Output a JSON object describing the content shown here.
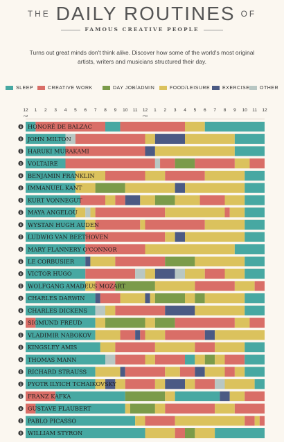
{
  "header": {
    "title_pre": "THE",
    "title_main": "DAILY ROUTINES",
    "title_post": "OF",
    "subtitle": "FAMOUS CREATIVE PEOPLE",
    "intro": "Turns out great minds don't think alike. Discover how some of the world's most original artists, writers and musicians structured their day."
  },
  "colors": {
    "sleep": "#47a8a2",
    "creative": "#d96e67",
    "dayjob": "#7b9b4a",
    "food": "#dbc25d",
    "exercise": "#4b5a84",
    "other": "#b8c7c3",
    "row_bg": "#e9dfca"
  },
  "info_icon": "info-icon",
  "chart_data": {
    "type": "bar",
    "orientation": "horizontal-stacked-timeline",
    "legend": [
      {
        "key": "sleep",
        "label": "SLEEP"
      },
      {
        "key": "creative",
        "label": "CREATIVE WORK"
      },
      {
        "key": "dayjob",
        "label": "DAY JOB/ADMIN"
      },
      {
        "key": "food",
        "label": "FOOD/LEISURE"
      },
      {
        "key": "exercise",
        "label": "EXERCISE"
      },
      {
        "key": "other",
        "label": "OTHER"
      }
    ],
    "x_ticks": [
      "12",
      "1",
      "2",
      "3",
      "4",
      "5",
      "6",
      "7",
      "8",
      "9",
      "10",
      "11",
      "12",
      "1",
      "2",
      "3",
      "4",
      "5",
      "6",
      "7",
      "8",
      "9",
      "10",
      "11",
      "12"
    ],
    "x_sublabels": [
      {
        "at": 0,
        "text": "AM"
      },
      {
        "at": 12,
        "text": "PM"
      }
    ],
    "xlim": [
      0,
      24
    ],
    "people": [
      {
        "name": "HONORÉ DE BALZAC",
        "segments": [
          [
            "sleep",
            1
          ],
          [
            "creative",
            8
          ],
          [
            "sleep",
            9.5
          ],
          [
            "creative",
            16
          ],
          [
            "food",
            18
          ],
          [
            "sleep",
            24
          ]
        ]
      },
      {
        "name": "JOHN MILTON",
        "segments": [
          [
            "sleep",
            4
          ],
          [
            "other",
            5
          ],
          [
            "creative",
            12
          ],
          [
            "food",
            13
          ],
          [
            "exercise",
            16
          ],
          [
            "food",
            21
          ],
          [
            "sleep",
            24
          ]
        ]
      },
      {
        "name": "HARUKI MURAKAMI",
        "segments": [
          [
            "sleep",
            4
          ],
          [
            "creative",
            12
          ],
          [
            "exercise",
            13
          ],
          [
            "food",
            21
          ],
          [
            "sleep",
            24
          ]
        ]
      },
      {
        "name": "VOLTAIRE",
        "segments": [
          [
            "sleep",
            4
          ],
          [
            "creative",
            13
          ],
          [
            "other",
            13.5
          ],
          [
            "creative",
            15
          ],
          [
            "dayjob",
            17
          ],
          [
            "creative",
            21
          ],
          [
            "food",
            22.5
          ],
          [
            "creative",
            24
          ]
        ]
      },
      {
        "name": "BENJAMIN FRANKLIN",
        "segments": [
          [
            "sleep",
            5
          ],
          [
            "food",
            8
          ],
          [
            "creative",
            12
          ],
          [
            "food",
            14
          ],
          [
            "creative",
            18
          ],
          [
            "food",
            22
          ],
          [
            "sleep",
            24
          ]
        ]
      },
      {
        "name": "IMMANUEL KANT",
        "segments": [
          [
            "sleep",
            5
          ],
          [
            "food",
            7
          ],
          [
            "dayjob",
            10
          ],
          [
            "food",
            15
          ],
          [
            "exercise",
            16
          ],
          [
            "food",
            22
          ],
          [
            "sleep",
            24
          ]
        ]
      },
      {
        "name": "KURT VONNEGUT",
        "segments": [
          [
            "sleep",
            5.5
          ],
          [
            "creative",
            8
          ],
          [
            "food",
            9
          ],
          [
            "creative",
            10
          ],
          [
            "exercise",
            11.5
          ],
          [
            "food",
            13
          ],
          [
            "dayjob",
            15
          ],
          [
            "food",
            17.5
          ],
          [
            "creative",
            20
          ],
          [
            "food",
            22
          ],
          [
            "sleep",
            24
          ]
        ]
      },
      {
        "name": "MAYA ANGELOU",
        "segments": [
          [
            "sleep",
            5
          ],
          [
            "food",
            6
          ],
          [
            "other",
            6.5
          ],
          [
            "food",
            7
          ],
          [
            "creative",
            14
          ],
          [
            "food",
            20
          ],
          [
            "creative",
            20.5
          ],
          [
            "food",
            22
          ],
          [
            "sleep",
            24
          ]
        ]
      },
      {
        "name": "WYSTAN HUGH AUDEN",
        "segments": [
          [
            "sleep",
            6
          ],
          [
            "food",
            7
          ],
          [
            "creative",
            11.5
          ],
          [
            "food",
            12
          ],
          [
            "creative",
            18
          ],
          [
            "food",
            22
          ],
          [
            "sleep",
            24
          ]
        ]
      },
      {
        "name": "LUDWIG VAN BEETHOVEN",
        "segments": [
          [
            "sleep",
            6
          ],
          [
            "creative",
            14
          ],
          [
            "food",
            15
          ],
          [
            "exercise",
            16
          ],
          [
            "food",
            22
          ],
          [
            "sleep",
            24
          ]
        ]
      },
      {
        "name": "MARY FLANNERY O'CONNOR",
        "segments": [
          [
            "sleep",
            6
          ],
          [
            "creative",
            12
          ],
          [
            "food",
            21
          ],
          [
            "sleep",
            24
          ]
        ]
      },
      {
        "name": "LE CORBUSIER",
        "segments": [
          [
            "sleep",
            6
          ],
          [
            "exercise",
            6.5
          ],
          [
            "food",
            9
          ],
          [
            "creative",
            14
          ],
          [
            "dayjob",
            17
          ],
          [
            "food",
            22
          ],
          [
            "sleep",
            24
          ]
        ]
      },
      {
        "name": "VICTOR HUGO",
        "segments": [
          [
            "sleep",
            6
          ],
          [
            "creative",
            11
          ],
          [
            "other",
            12
          ],
          [
            "food",
            13
          ],
          [
            "exercise",
            15
          ],
          [
            "other",
            16
          ],
          [
            "food",
            18
          ],
          [
            "creative",
            20
          ],
          [
            "food",
            22
          ],
          [
            "sleep",
            24
          ]
        ]
      },
      {
        "name": "WOLFGANG AMADEUS MOZART",
        "segments": [
          [
            "sleep",
            6
          ],
          [
            "food",
            7
          ],
          [
            "creative",
            9
          ],
          [
            "dayjob",
            13
          ],
          [
            "food",
            17
          ],
          [
            "creative",
            21
          ],
          [
            "food",
            23
          ],
          [
            "creative",
            24
          ]
        ]
      },
      {
        "name": "CHARLES DARWIN",
        "segments": [
          [
            "sleep",
            7
          ],
          [
            "exercise",
            7.5
          ],
          [
            "creative",
            9.5
          ],
          [
            "food",
            12
          ],
          [
            "exercise",
            12.5
          ],
          [
            "food",
            13
          ],
          [
            "dayjob",
            16
          ],
          [
            "food",
            17
          ],
          [
            "dayjob",
            18
          ],
          [
            "food",
            22
          ],
          [
            "sleep",
            24
          ]
        ]
      },
      {
        "name": "CHARLES DICKENS",
        "segments": [
          [
            "sleep",
            7
          ],
          [
            "other",
            8
          ],
          [
            "food",
            9
          ],
          [
            "creative",
            14
          ],
          [
            "exercise",
            17
          ],
          [
            "food",
            22
          ],
          [
            "sleep",
            24
          ]
        ]
      },
      {
        "name": "SIGMUND FREUD",
        "segments": [
          [
            "creative",
            1
          ],
          [
            "sleep",
            7
          ],
          [
            "food",
            8
          ],
          [
            "dayjob",
            12
          ],
          [
            "food",
            13
          ],
          [
            "dayjob",
            15
          ],
          [
            "creative",
            21
          ],
          [
            "food",
            22.5
          ],
          [
            "creative",
            24
          ]
        ]
      },
      {
        "name": "VLADIMIR NABOKOV",
        "segments": [
          [
            "sleep",
            7
          ],
          [
            "food",
            9.5
          ],
          [
            "creative",
            11
          ],
          [
            "exercise",
            11.5
          ],
          [
            "creative",
            12
          ],
          [
            "food",
            14
          ],
          [
            "creative",
            18
          ],
          [
            "exercise",
            19
          ],
          [
            "food",
            24
          ]
        ]
      },
      {
        "name": "KINGSLEY AMIS",
        "segments": [
          [
            "sleep",
            7.5
          ],
          [
            "food",
            9
          ],
          [
            "creative",
            13
          ],
          [
            "food",
            17
          ],
          [
            "creative",
            19
          ],
          [
            "food",
            22
          ],
          [
            "sleep",
            24
          ]
        ]
      },
      {
        "name": "THOMAS MANN",
        "segments": [
          [
            "sleep",
            8
          ],
          [
            "other",
            9
          ],
          [
            "creative",
            12
          ],
          [
            "food",
            13
          ],
          [
            "creative",
            16
          ],
          [
            "sleep",
            17
          ],
          [
            "food",
            18
          ],
          [
            "dayjob",
            19
          ],
          [
            "food",
            20
          ],
          [
            "creative",
            22
          ],
          [
            "sleep",
            24
          ]
        ]
      },
      {
        "name": "RICHARD STRAUSS",
        "segments": [
          [
            "sleep",
            7
          ],
          [
            "food",
            9.5
          ],
          [
            "exercise",
            10
          ],
          [
            "creative",
            14
          ],
          [
            "food",
            15.5
          ],
          [
            "creative",
            17
          ],
          [
            "exercise",
            18
          ],
          [
            "food",
            20
          ],
          [
            "creative",
            21
          ],
          [
            "food",
            22
          ],
          [
            "sleep",
            24
          ]
        ]
      },
      {
        "name": "PYOTR ILYICH TCHAIKOVSKY",
        "segments": [
          [
            "sleep",
            7
          ],
          [
            "food",
            8
          ],
          [
            "exercise",
            9
          ],
          [
            "food",
            10
          ],
          [
            "creative",
            13
          ],
          [
            "food",
            14
          ],
          [
            "exercise",
            16
          ],
          [
            "food",
            17
          ],
          [
            "creative",
            19
          ],
          [
            "other",
            20
          ],
          [
            "food",
            23
          ],
          [
            "sleep",
            24
          ]
        ]
      },
      {
        "name": "FRANZ KAFKA",
        "segments": [
          [
            "creative",
            3
          ],
          [
            "sleep",
            10
          ],
          [
            "dayjob",
            14
          ],
          [
            "food",
            15
          ],
          [
            "sleep",
            19.5
          ],
          [
            "exercise",
            20.5
          ],
          [
            "food",
            22
          ],
          [
            "creative",
            24
          ]
        ]
      },
      {
        "name": "GUSTAVE FLAUBERT",
        "segments": [
          [
            "creative",
            1
          ],
          [
            "sleep",
            10
          ],
          [
            "food",
            10.5
          ],
          [
            "dayjob",
            13
          ],
          [
            "food",
            14
          ],
          [
            "creative",
            19
          ],
          [
            "food",
            21
          ],
          [
            "creative",
            24
          ]
        ]
      },
      {
        "name": "PABLO PICASSO",
        "segments": [
          [
            "sleep",
            11
          ],
          [
            "food",
            12
          ],
          [
            "creative",
            15
          ],
          [
            "food",
            22
          ],
          [
            "creative",
            23
          ],
          [
            "food",
            23.5
          ],
          [
            "creative",
            24
          ]
        ]
      },
      {
        "name": "WILLIAM STYRON",
        "segments": [
          [
            "sleep",
            12
          ],
          [
            "food",
            15
          ],
          [
            "creative",
            16
          ],
          [
            "dayjob",
            17
          ],
          [
            "food",
            19
          ],
          [
            "sleep",
            24
          ]
        ]
      }
    ]
  }
}
